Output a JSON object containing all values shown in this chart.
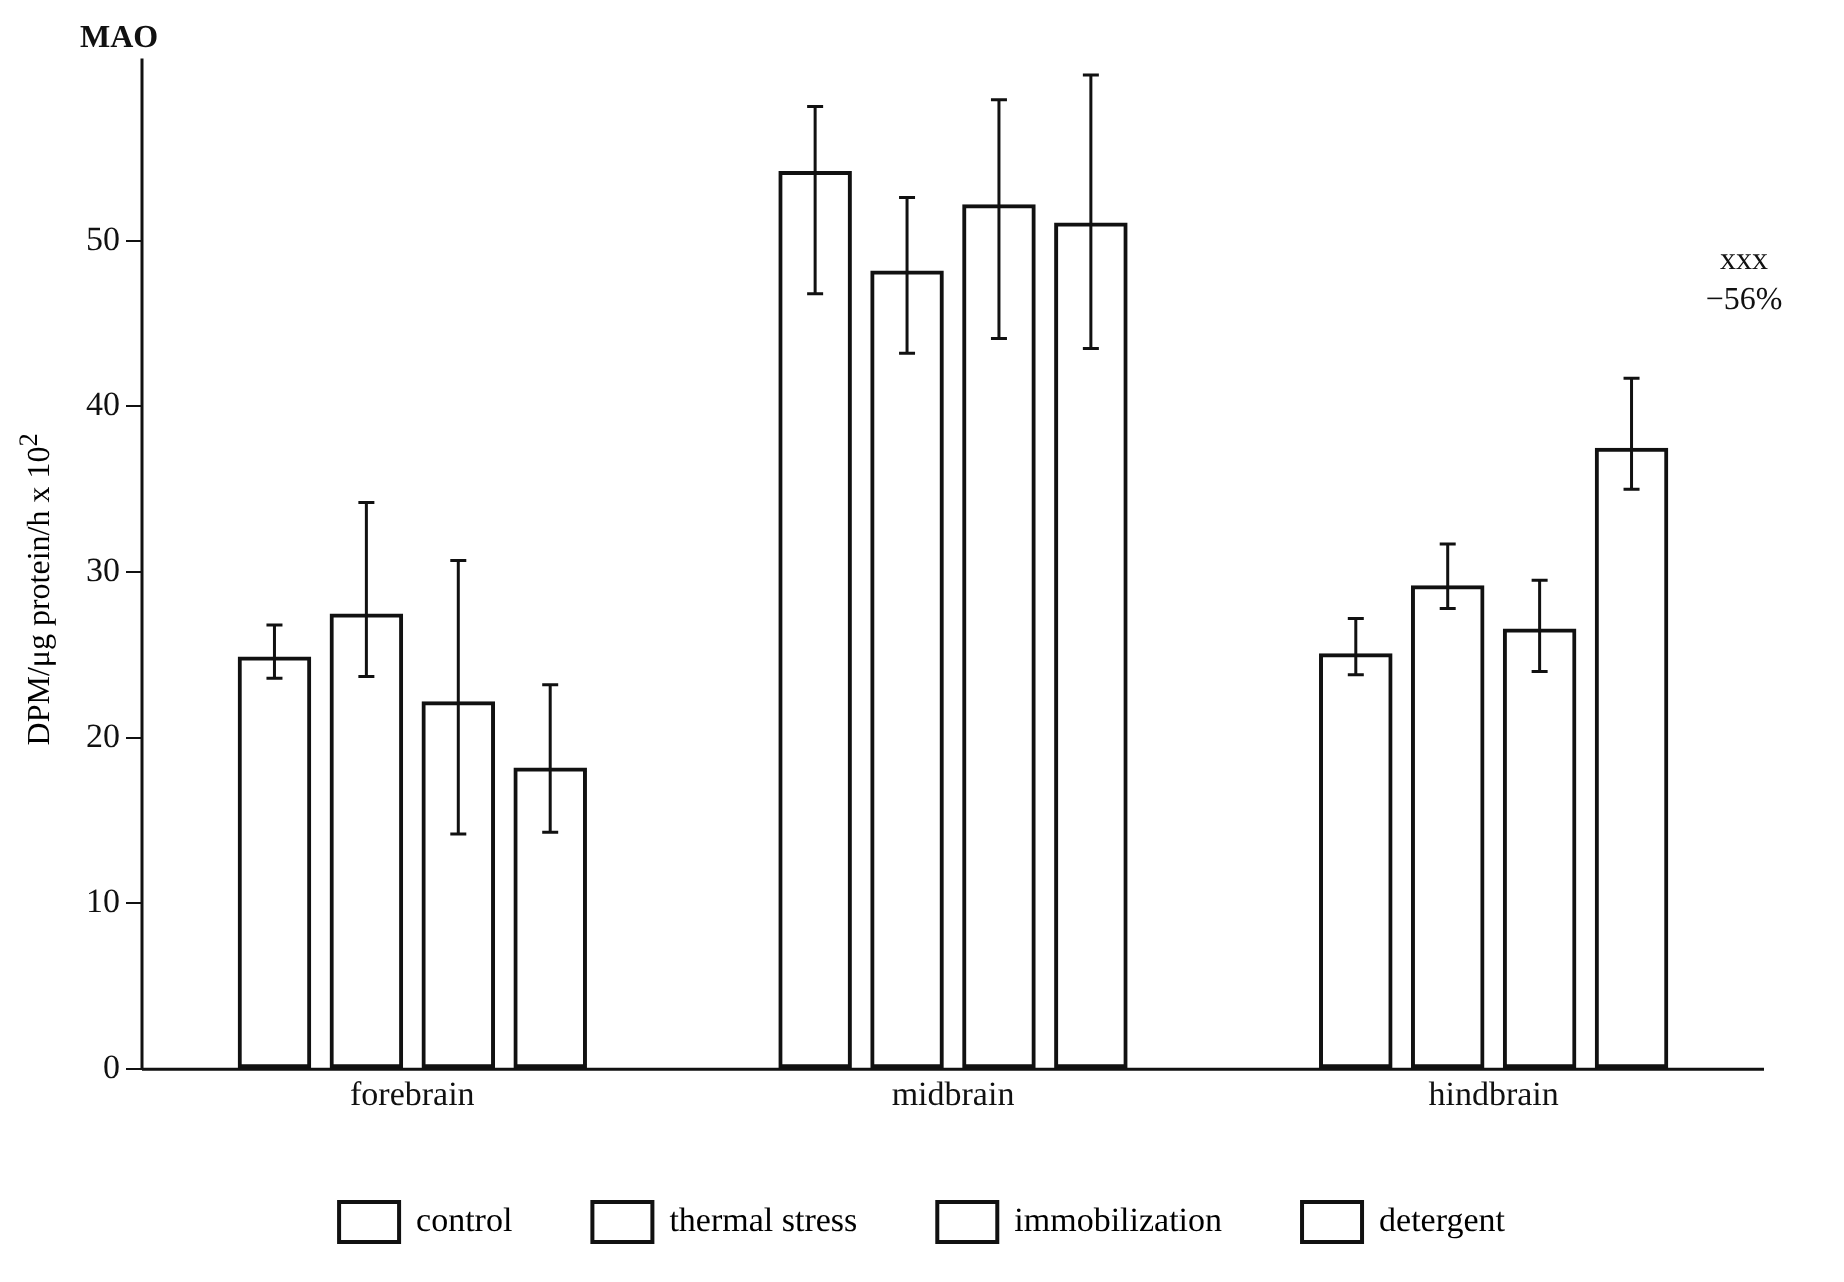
{
  "chart_data": {
    "type": "bar",
    "title": "MAO",
    "ylabel": "DPM/μg protein/h x 10$^{2}$",
    "categories": [
      "forebrain",
      "midbrain",
      "hindbrain"
    ],
    "series": [
      {
        "name": "control",
        "color": "#111111",
        "values": [
          24.9,
          54.2,
          25.1
        ],
        "errors": [
          [
            23.6,
            26.8
          ],
          [
            46.8,
            58.1
          ],
          [
            23.8,
            27.2
          ]
        ]
      },
      {
        "name": "thermal stress",
        "color": "#111111",
        "values": [
          27.5,
          48.2,
          29.2
        ],
        "errors": [
          [
            23.7,
            34.2
          ],
          [
            43.2,
            52.6
          ],
          [
            27.8,
            31.7
          ]
        ]
      },
      {
        "name": "immobilization",
        "color": "#111111",
        "values": [
          22.2,
          52.2,
          26.6
        ],
        "errors": [
          [
            14.2,
            30.7
          ],
          [
            44.1,
            58.5
          ],
          [
            24.0,
            29.5
          ]
        ]
      },
      {
        "name": "detergent",
        "color": "#111111",
        "values": [
          18.2,
          51.1,
          37.5
        ],
        "errors": [
          [
            14.3,
            23.2
          ],
          [
            43.5,
            60.0
          ],
          [
            35.0,
            41.7
          ]
        ]
      }
    ],
    "annotations": [
      "xxx\n−56%"
    ],
    "ylim": [
      0,
      61
    ],
    "yticks": [
      0,
      10,
      20,
      30,
      40,
      50
    ],
    "grid": false,
    "legend": "bottom"
  }
}
